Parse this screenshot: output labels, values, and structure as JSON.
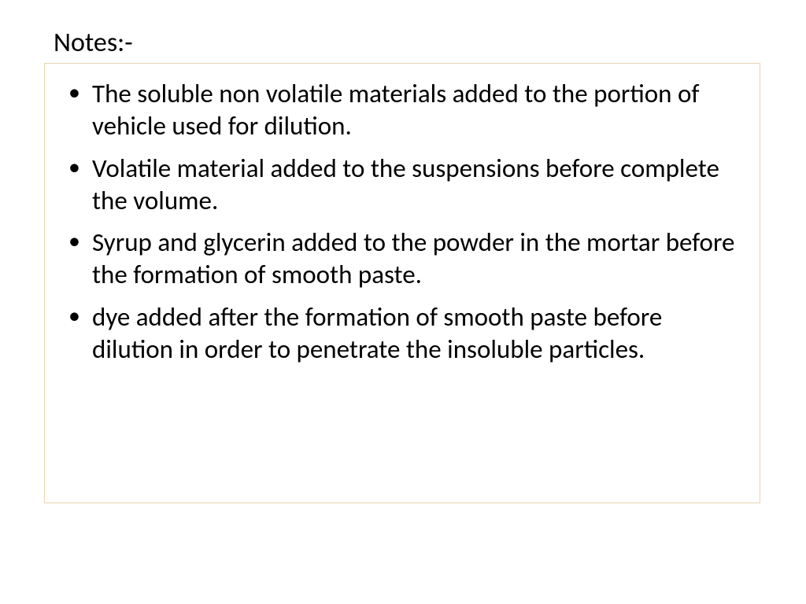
{
  "slide": {
    "title": "Notes:-",
    "bullets": [
      "The soluble non volatile materials added to the portion of vehicle used for dilution.",
      "Volatile material added to the suspensions before complete the volume.",
      "Syrup and glycerin added to the powder in the mortar before the formation of smooth paste.",
      " dye added after the formation of smooth paste before dilution in order to penetrate the insoluble particles."
    ],
    "styles": {
      "title_fontsize": 34,
      "bullet_fontsize": 33,
      "text_color": "#000000",
      "box_border_color": "#e8d4b0",
      "background_color": "#ffffff",
      "font_family": "Calibri"
    }
  }
}
